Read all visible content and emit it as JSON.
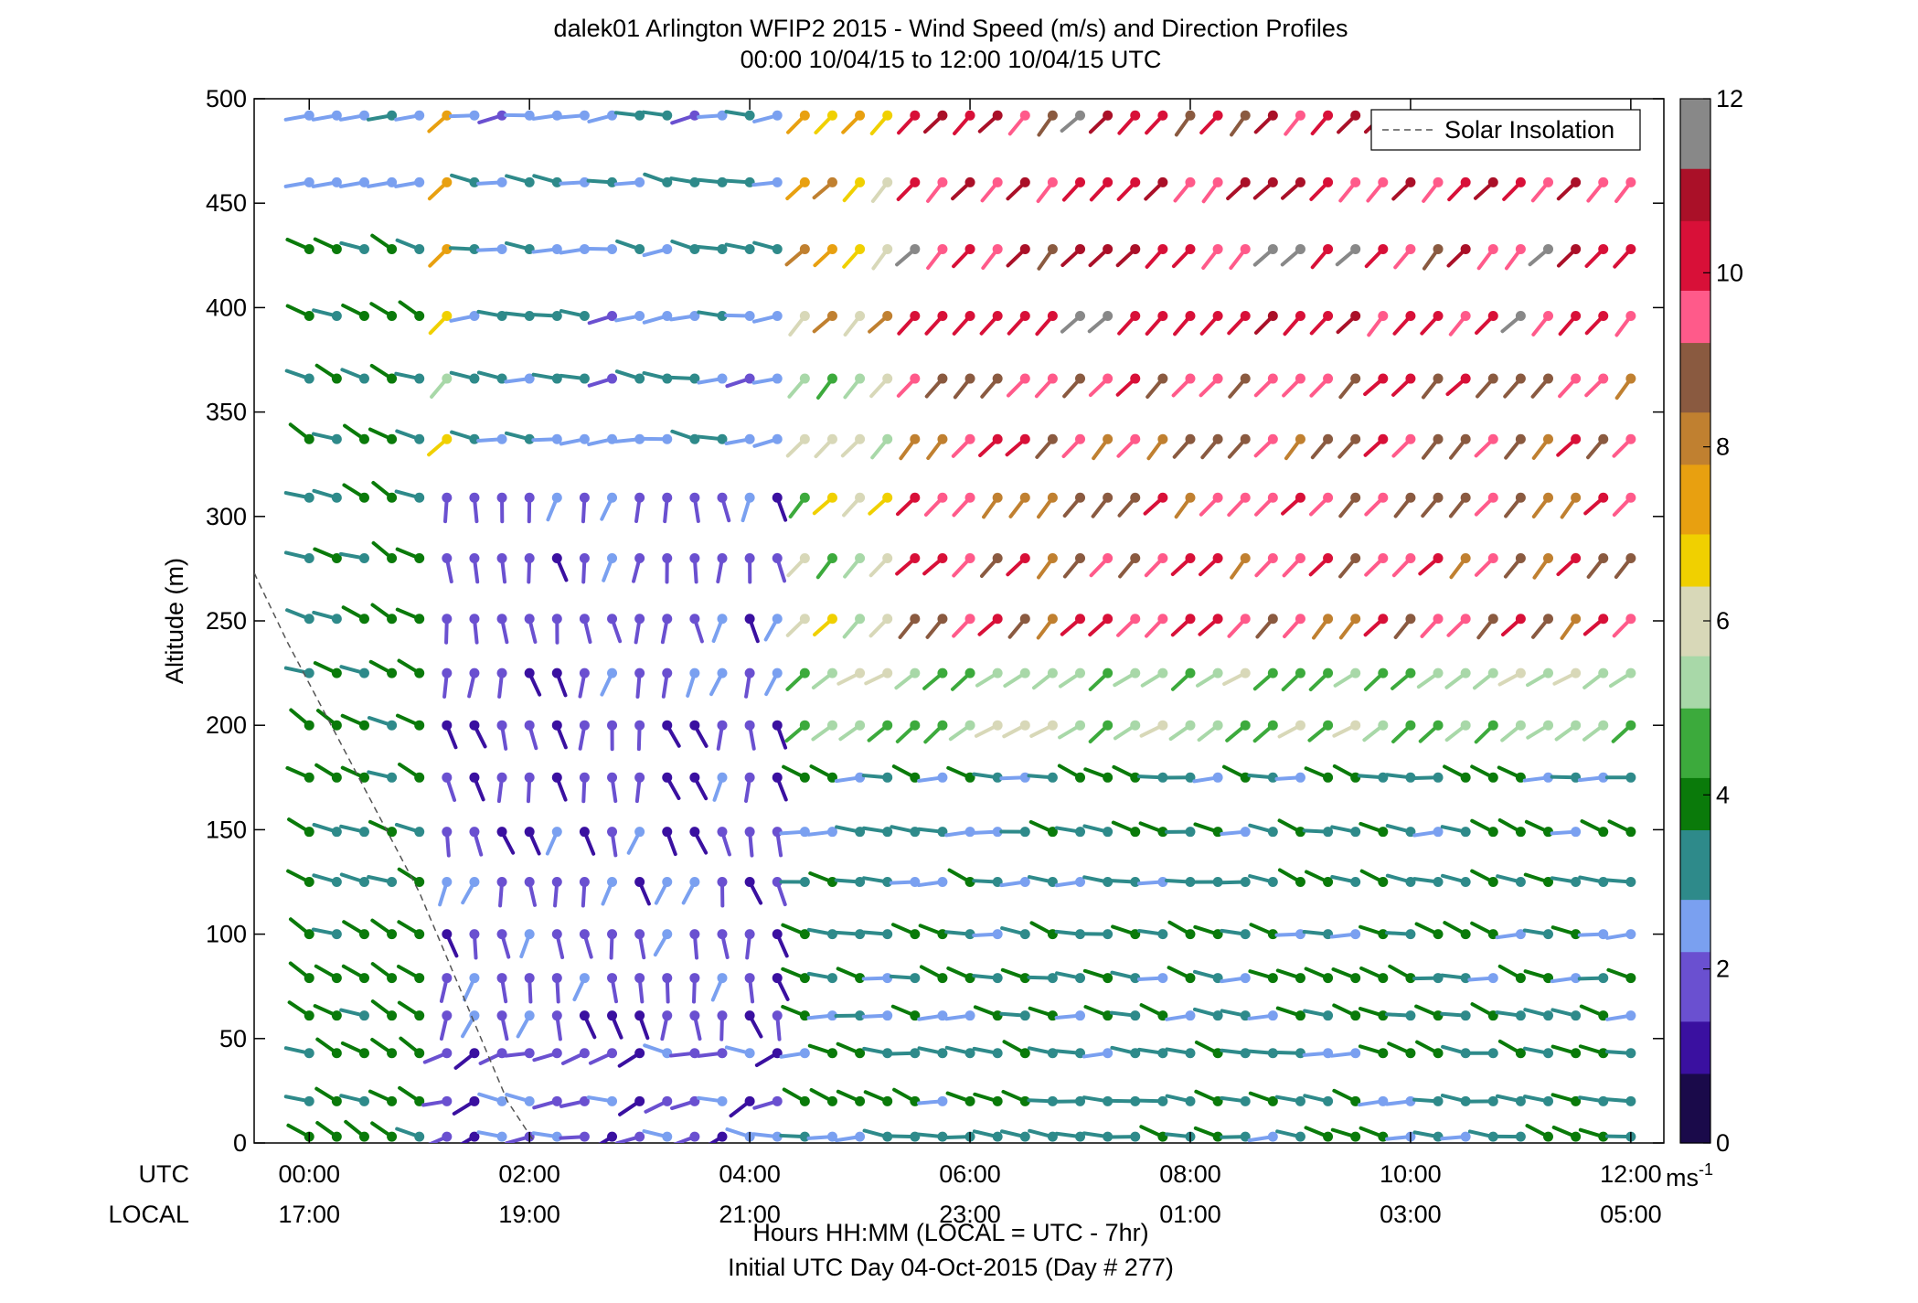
{
  "chart_data": {
    "type": "vector-field",
    "title": "dalek01 Arlington WFIP2 2015 - Wind Speed (m/s) and Direction Profiles",
    "subtitle": "00:00 10/04/15 to 12:00 10/04/15  UTC",
    "ylabel": "Altitude (m)",
    "xlabel": "Hours HH:MM  (LOCAL = UTC - 7hr)",
    "xlabel2": "Initial UTC Day 04-Oct-2015 (Day # 277)",
    "x_row_labels": {
      "utc": "UTC",
      "local": "LOCAL"
    },
    "xlim_hours": [
      -0.5,
      12.3
    ],
    "ylim": [
      0,
      500
    ],
    "yticks": [
      "0",
      "50",
      "100",
      "150",
      "200",
      "250",
      "300",
      "350",
      "400",
      "450",
      "500"
    ],
    "xticks": [
      {
        "hour": 0,
        "utc": "00:00",
        "local": "17:00"
      },
      {
        "hour": 2,
        "utc": "02:00",
        "local": "19:00"
      },
      {
        "hour": 4,
        "utc": "04:00",
        "local": "21:00"
      },
      {
        "hour": 6,
        "utc": "06:00",
        "local": "23:00"
      },
      {
        "hour": 8,
        "utc": "08:00",
        "local": "01:00"
      },
      {
        "hour": 10,
        "utc": "10:00",
        "local": "03:00"
      },
      {
        "hour": 12,
        "utc": "12:00",
        "local": "05:00"
      }
    ],
    "altitudes_m": [
      3,
      20,
      43,
      61,
      79,
      100,
      125,
      149,
      175,
      200,
      225,
      251,
      280,
      309,
      337,
      366,
      396,
      428,
      460,
      492
    ],
    "time_step_hours": 0.25,
    "time_start_hours": 0,
    "time_end_hours": 12,
    "legend": {
      "label": "Solar Insolation",
      "position": "top-right"
    },
    "solar_insolation_curve": [
      [
        -0.5,
        273
      ],
      [
        -0.2,
        240
      ],
      [
        0.2,
        200
      ],
      [
        0.6,
        160
      ],
      [
        1.0,
        120
      ],
      [
        1.4,
        70
      ],
      [
        1.8,
        20
      ],
      [
        2.05,
        0
      ]
    ],
    "colorbar": {
      "unit_label": "ms",
      "unit_exponent": "-1",
      "min": 0,
      "max": 12,
      "ticks": [
        "0",
        "2",
        "4",
        "6",
        "8",
        "10",
        "12"
      ]
    },
    "colors": {
      "calm": "#888888",
      "ramp": [
        "#1a0a4a",
        "#3a10a0",
        "#6a50d0",
        "#7aa0f0",
        "#2e8a8a",
        "#0a7a0a",
        "#3caa3c",
        "#a8d8a8",
        "#d8d8b8",
        "#f0d000",
        "#e8a010",
        "#c08030",
        "#8a5a40",
        "#ff5a8a",
        "#d81038",
        "#aa1028",
        "#888888"
      ]
    },
    "wind_field_summary": [
      {
        "period_utc": "00:00-01:15",
        "altitudes": "0-500",
        "speed_ms": 3.5,
        "direction": "westerly to north-westerly"
      },
      {
        "period_utc": "01:15-04:30",
        "altitudes": "0-300",
        "speed_ms": 1.5,
        "direction": "variable, mostly southerly"
      },
      {
        "period_utc": "04:30-12:00",
        "altitudes": "250-500",
        "speed_ms": 9.0,
        "direction": "south-westerly"
      },
      {
        "period_utc": "05:00-12:00",
        "altitudes": "0-200",
        "speed_ms": 3.0,
        "direction": "westerly"
      }
    ]
  }
}
